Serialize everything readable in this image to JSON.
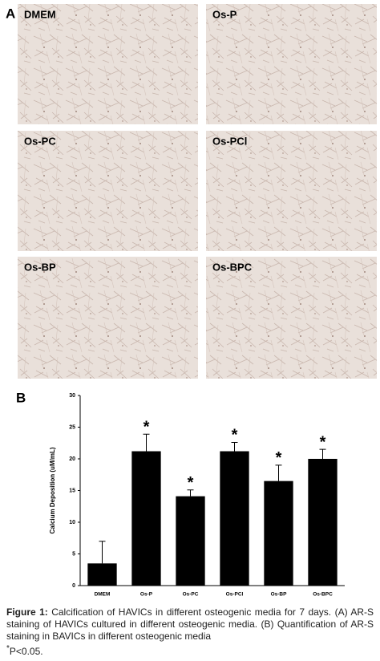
{
  "panel_a": {
    "letter": "A",
    "images": [
      {
        "label": "DMEM"
      },
      {
        "label": "Os-P"
      },
      {
        "label": "Os-PC"
      },
      {
        "label": "Os-PCl"
      },
      {
        "label": "Os-BP"
      },
      {
        "label": "Os-BPC"
      }
    ]
  },
  "panel_b": {
    "letter": "B"
  },
  "chart_data": {
    "type": "bar",
    "y_label": "Calcium Deposition (uM/mL)",
    "categories": [
      "DMEM",
      "Os-P",
      "Os-PC",
      "Os-PCl",
      "Os-BP",
      "Os-BPC"
    ],
    "values": [
      3.5,
      21.2,
      14.1,
      21.2,
      16.5,
      20.0
    ],
    "errors": [
      3.5,
      2.7,
      1.0,
      1.4,
      2.5,
      1.5
    ],
    "annotations": [
      null,
      "*",
      "*",
      "*",
      "*",
      "*"
    ],
    "color": "#000000",
    "ylim": [
      0,
      30
    ],
    "yticks": [
      0,
      5,
      10,
      15,
      20,
      25,
      30
    ],
    "grid": false
  },
  "caption": {
    "label": "Figure 1:",
    "text": "Calcification of HAVICs in different osteogenic media for 7 days. (A) AR-S staining of HAVICs cultured in different osteogenic media. (B) Quantification of AR-S staining in BAVICs in different osteogenic media",
    "note_mark": "*",
    "note": "P<0.05."
  }
}
